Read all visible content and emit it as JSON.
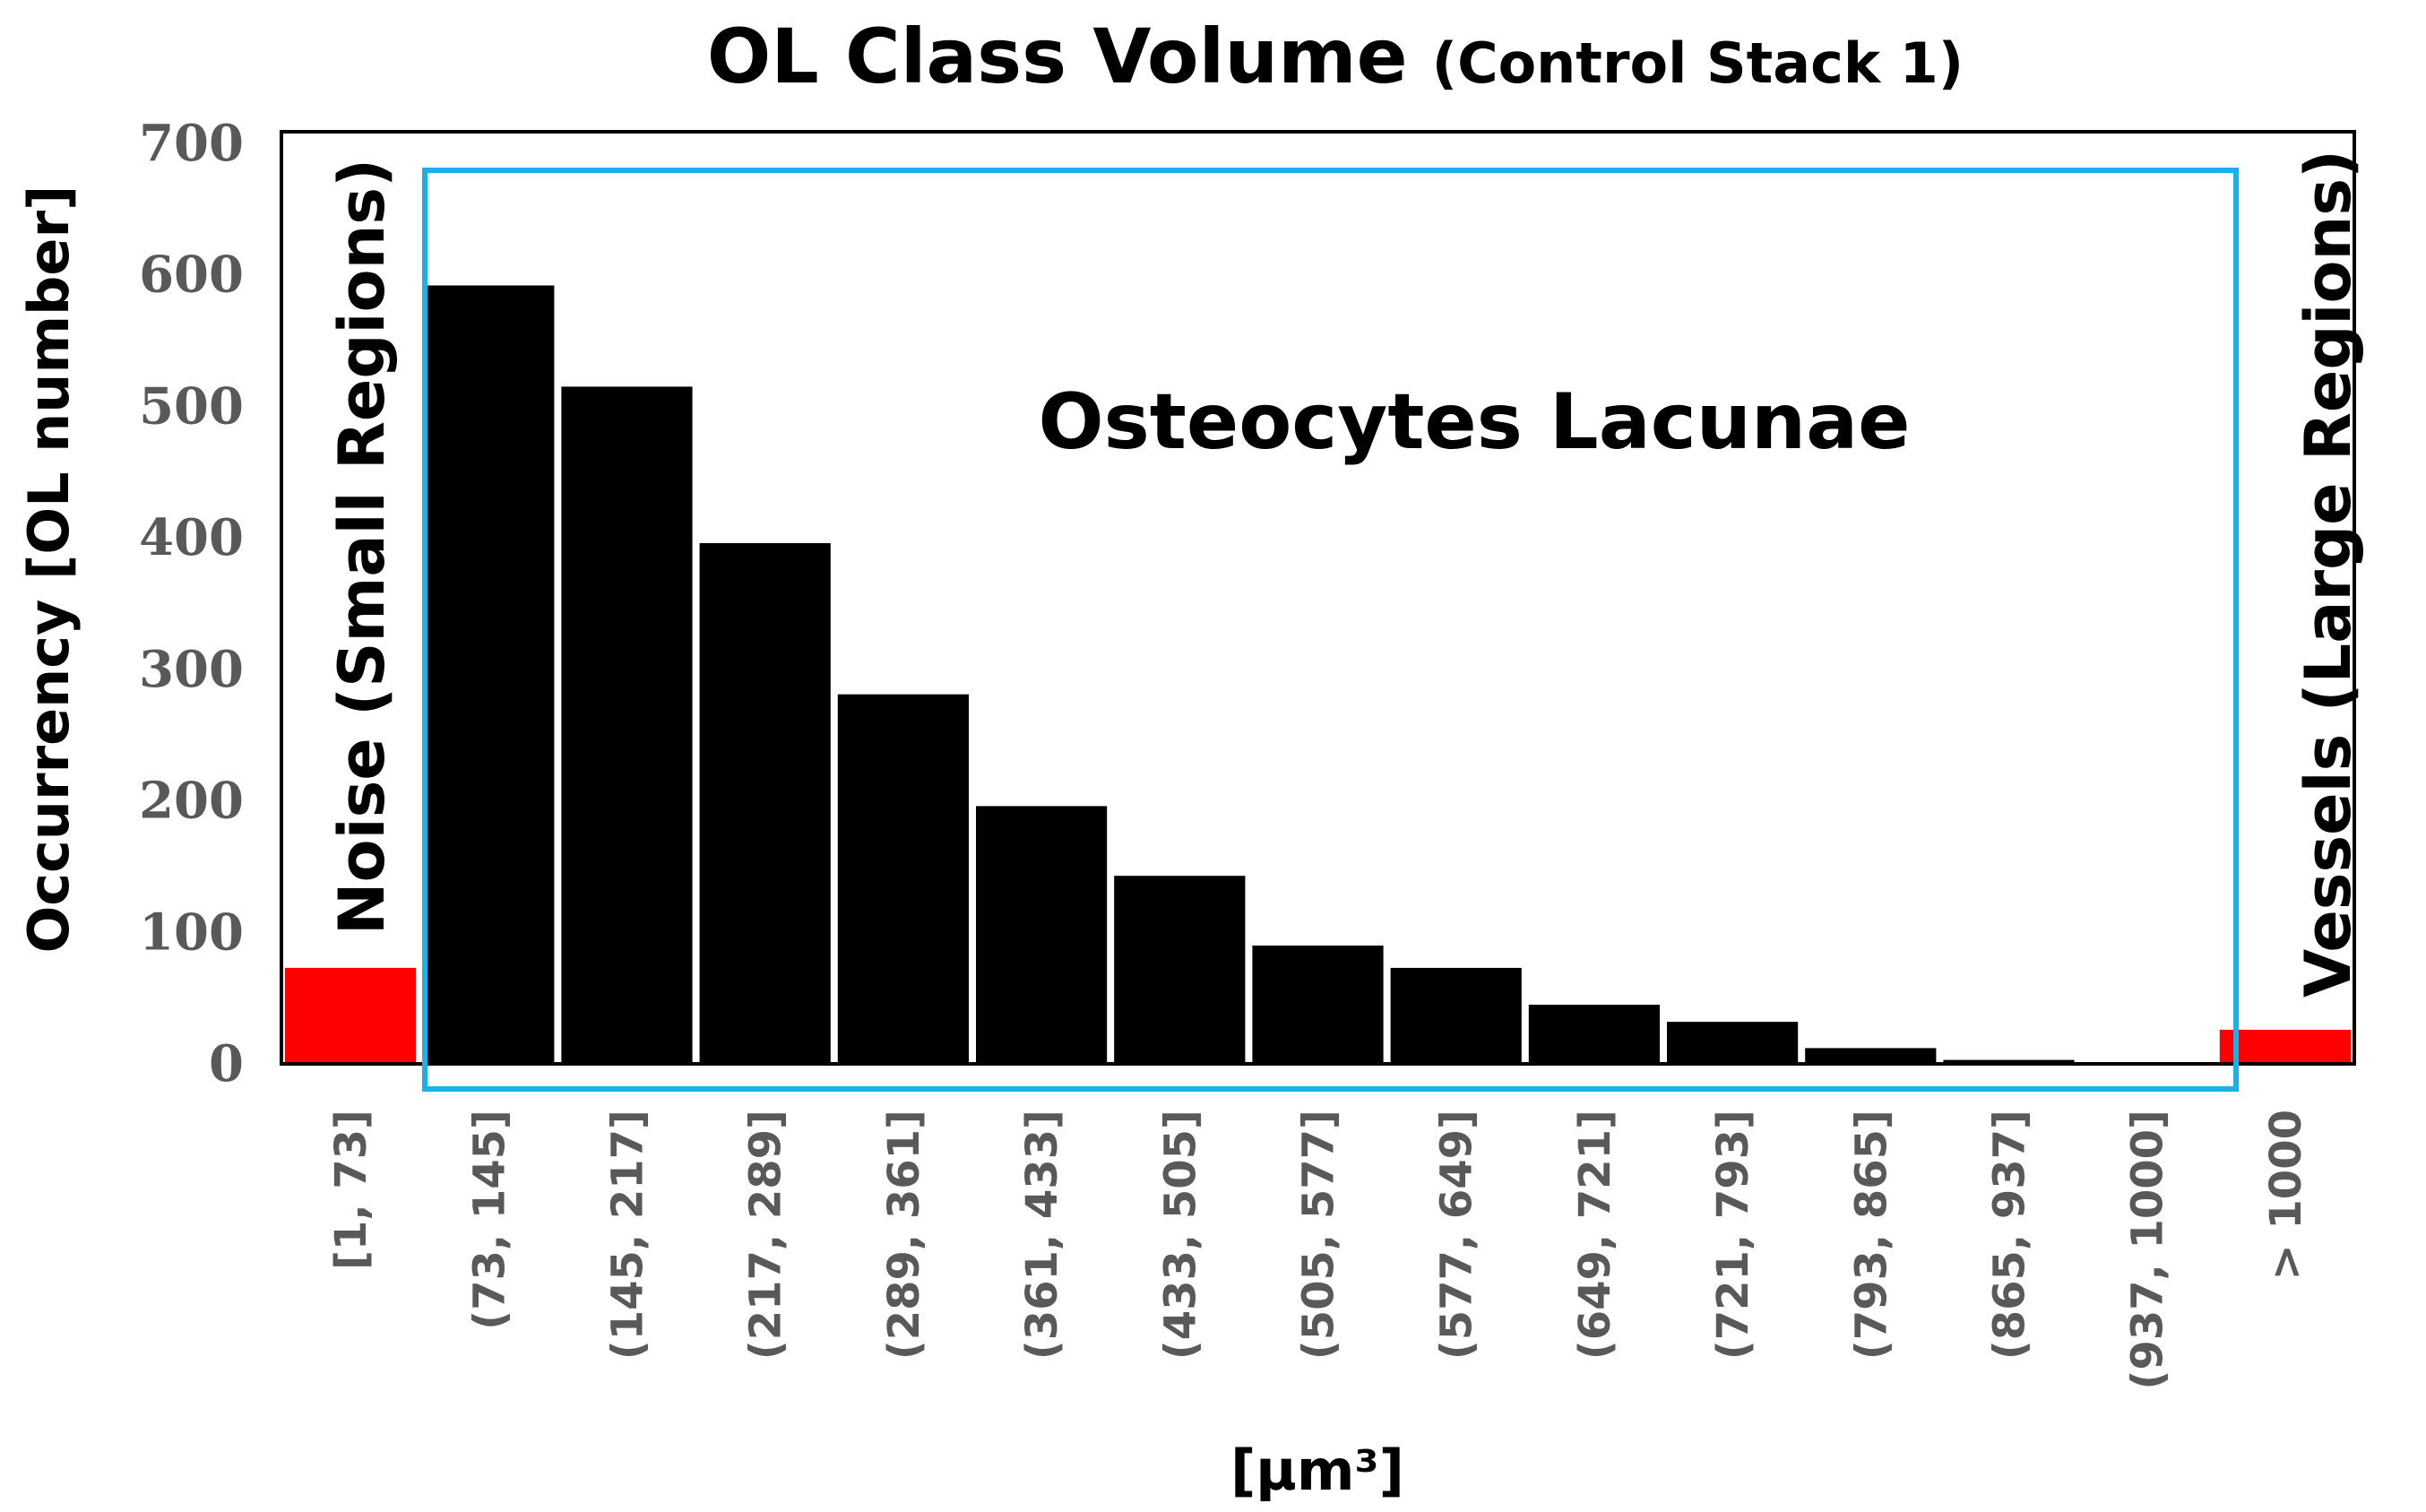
{
  "chart_data": {
    "type": "bar",
    "title": "OL Class Volume",
    "subtitle": "(Control Stack 1)",
    "xlabel": "[µm³]",
    "ylabel": "Occurrency [OL number]",
    "ylim": [
      0,
      700
    ],
    "yticks": [
      0,
      100,
      200,
      300,
      400,
      500,
      600,
      700
    ],
    "categories": [
      "[1, 73]",
      "(73, 145]",
      "(145, 217]",
      "(217, 289]",
      "(289, 361]",
      "(361, 433]",
      "(433, 505]",
      "(505, 577]",
      "(577, 649]",
      "(649, 721]",
      "(721, 793]",
      "(793, 865]",
      "(865, 937]",
      "(937, 1000]",
      "> 1000"
    ],
    "values": [
      73,
      592,
      515,
      396,
      281,
      196,
      143,
      90,
      73,
      45,
      32,
      12,
      3,
      1,
      26
    ],
    "bar_colors": [
      "#ff0000",
      "#000000",
      "#000000",
      "#000000",
      "#000000",
      "#000000",
      "#000000",
      "#000000",
      "#000000",
      "#000000",
      "#000000",
      "#000000",
      "#000000",
      "#000000",
      "#ff0000"
    ],
    "highlight_box_color": "#1ab0e8",
    "annotations": {
      "left_region": "Noise (Small Regions)",
      "right_region": "Vessels (Large Regions)",
      "box_label": "Osteocytes Lacunae"
    },
    "grid": false,
    "legend": "none"
  }
}
